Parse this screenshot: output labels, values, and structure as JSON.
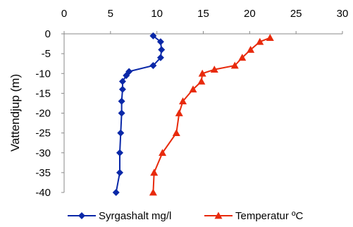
{
  "chart_data": {
    "type": "line",
    "title": "",
    "xlabel": "",
    "ylabel": "Vattendjup (m)",
    "xlim": [
      0,
      30
    ],
    "ylim": [
      -40,
      0
    ],
    "x_ticks": [
      "0",
      "5",
      "10",
      "15",
      "20",
      "25",
      "30"
    ],
    "y_ticks": [
      "0",
      "-5",
      "-10",
      "-15",
      "-20",
      "-25",
      "-30",
      "-35",
      "-40"
    ],
    "x_tick_values": [
      0,
      5,
      10,
      15,
      20,
      25,
      30
    ],
    "y_tick_values": [
      0,
      -5,
      -10,
      -15,
      -20,
      -25,
      -30,
      -35,
      -40
    ],
    "x_axis_position": "top",
    "grid": false,
    "legend_position": "bottom",
    "series": [
      {
        "name": "Syrgashalt mg/l",
        "color": "#0a28a8",
        "marker": "diamond",
        "points": [
          [
            9.6,
            -0.5
          ],
          [
            10.4,
            -2
          ],
          [
            10.5,
            -4
          ],
          [
            10.4,
            -6
          ],
          [
            9.6,
            -8
          ],
          [
            7.0,
            -9.5
          ],
          [
            6.7,
            -10.5
          ],
          [
            6.3,
            -12
          ],
          [
            6.3,
            -14
          ],
          [
            6.2,
            -17
          ],
          [
            6.2,
            -20
          ],
          [
            6.1,
            -25
          ],
          [
            6.0,
            -30
          ],
          [
            6.0,
            -35
          ],
          [
            5.6,
            -40
          ]
        ]
      },
      {
        "name": "Temperatur ºC",
        "color": "#e82a0c",
        "marker": "triangle",
        "points": [
          [
            22.2,
            -1
          ],
          [
            21.1,
            -2
          ],
          [
            20.1,
            -4
          ],
          [
            19.2,
            -6
          ],
          [
            18.4,
            -8
          ],
          [
            16.2,
            -9
          ],
          [
            14.9,
            -10
          ],
          [
            14.8,
            -12
          ],
          [
            13.9,
            -14
          ],
          [
            12.8,
            -17
          ],
          [
            12.4,
            -20
          ],
          [
            12.1,
            -25
          ],
          [
            10.6,
            -30
          ],
          [
            9.7,
            -35
          ],
          [
            9.6,
            -40
          ]
        ]
      }
    ]
  }
}
